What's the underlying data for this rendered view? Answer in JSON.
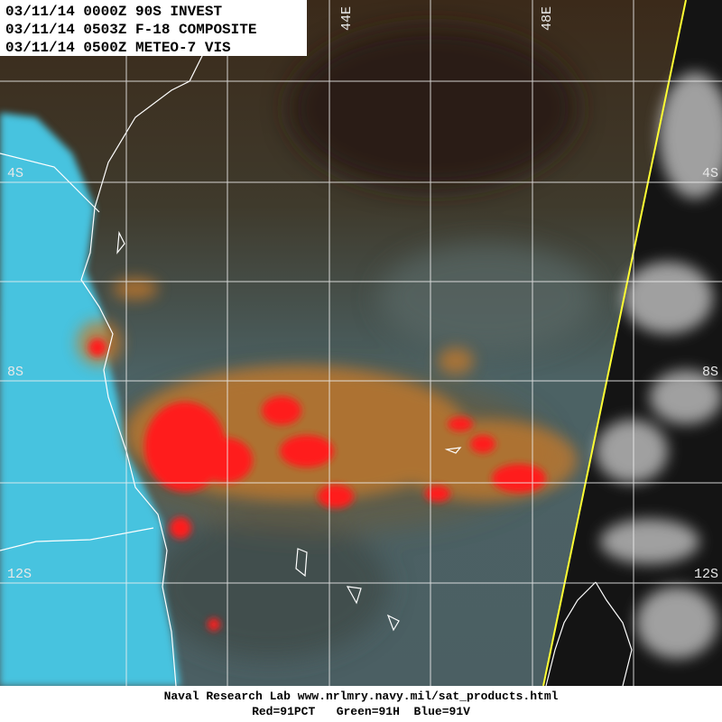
{
  "header": {
    "lines": [
      "03/11/14 0000Z 90S INVEST",
      "03/11/14 0503Z F-18 COMPOSITE",
      "03/11/14 0500Z METEO-7 VIS"
    ]
  },
  "grid_labels": {
    "longitude": [
      "44E",
      "48E"
    ],
    "latitude_left": [
      "4S",
      "8S",
      "12S"
    ],
    "latitude_right": [
      "4S",
      "8S",
      "12S"
    ]
  },
  "footer": {
    "lines": [
      "Naval Research Lab  www.nrlmry.navy.mil/sat_products.html",
      "Red=91PCT   Green=91H  Blue=91V"
    ]
  }
}
